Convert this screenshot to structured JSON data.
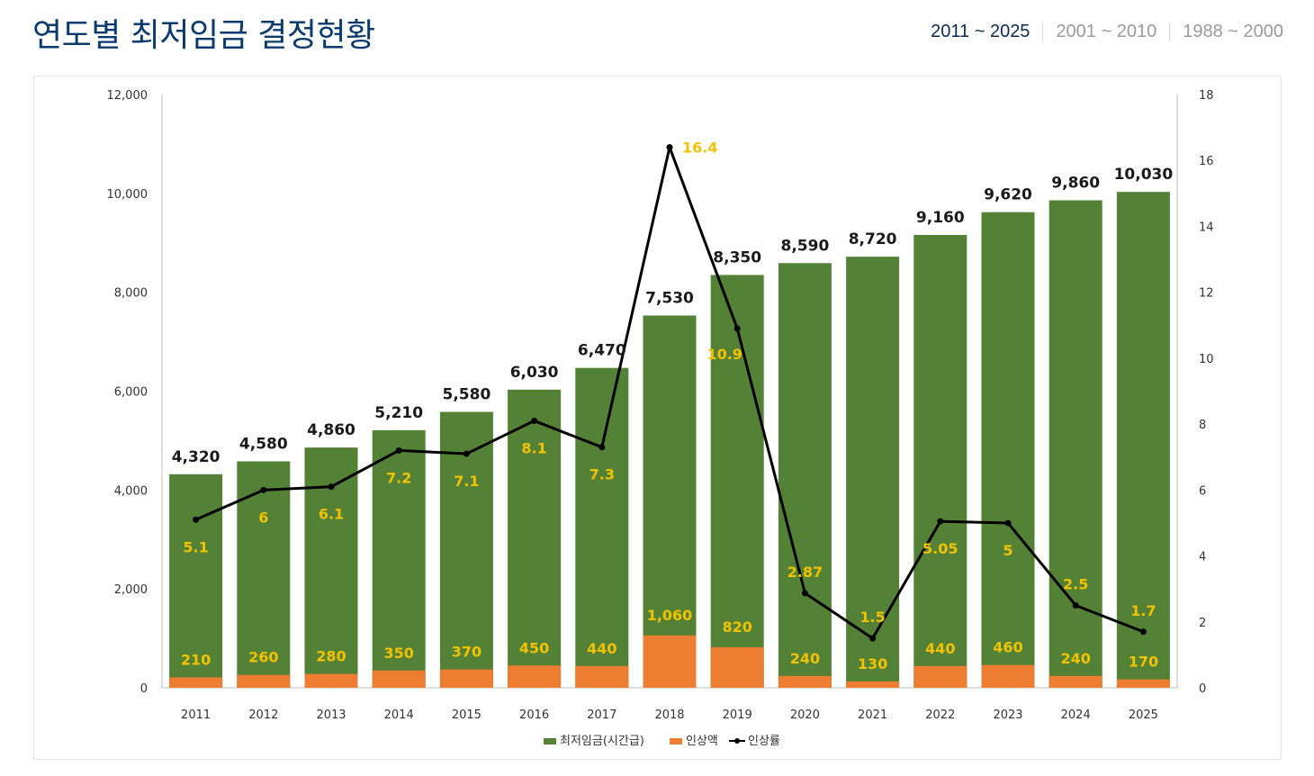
{
  "page": {
    "title": "연도별 최저임금 결정현황",
    "tabs": [
      {
        "label": "2011 ~ 2025",
        "active": true
      },
      {
        "label": "2001 ~ 2010",
        "active": false
      },
      {
        "label": "1988 ~ 2000",
        "active": false
      }
    ]
  },
  "colors": {
    "wage_bar": "#538135",
    "increase_bar": "#ed7d31",
    "rate_line": "#000000",
    "data_label": "#f2c200",
    "title": "#0b3a6e"
  },
  "chart_data": {
    "type": "bar",
    "title": "",
    "categories": [
      "2011",
      "2012",
      "2013",
      "2014",
      "2015",
      "2016",
      "2017",
      "2018",
      "2019",
      "2020",
      "2021",
      "2022",
      "2023",
      "2024",
      "2025"
    ],
    "series": [
      {
        "name": "최저임금(시간급)",
        "type": "bar",
        "axis": "left",
        "values": [
          4320,
          4580,
          4860,
          5210,
          5580,
          6030,
          6470,
          7530,
          8350,
          8590,
          8720,
          9160,
          9620,
          9860,
          10030
        ],
        "labels": [
          "4,320",
          "4,580",
          "4,860",
          "5,210",
          "5,580",
          "6,030",
          "6,470",
          "7,530",
          "8,350",
          "8,590",
          "8,720",
          "9,160",
          "9,620",
          "9,860",
          "10,030"
        ]
      },
      {
        "name": "인상액",
        "type": "bar",
        "axis": "left",
        "values": [
          210,
          260,
          280,
          350,
          370,
          450,
          440,
          1060,
          820,
          240,
          130,
          440,
          460,
          240,
          170
        ],
        "labels": [
          "210",
          "260",
          "280",
          "350",
          "370",
          "450",
          "440",
          "1,060",
          "820",
          "240",
          "130",
          "440",
          "460",
          "240",
          "170"
        ]
      },
      {
        "name": "인상률",
        "type": "line",
        "axis": "right",
        "values": [
          5.1,
          6,
          6.1,
          7.2,
          7.1,
          8.1,
          7.3,
          16.4,
          10.9,
          2.87,
          1.5,
          5.05,
          5,
          2.5,
          1.7
        ],
        "labels": [
          "5.1",
          "6",
          "6.1",
          "7.2",
          "7.1",
          "8.1",
          "7.3",
          "16.4",
          "10.9",
          "2.87",
          "1.5",
          "5.05",
          "5",
          "2.5",
          "1.7"
        ]
      }
    ],
    "y_left": {
      "min": 0,
      "max": 12000,
      "ticks": [
        0,
        2000,
        4000,
        6000,
        8000,
        10000,
        12000
      ],
      "tick_labels": [
        "0",
        "2,000",
        "4,000",
        "6,000",
        "8,000",
        "10,000",
        "12,000"
      ]
    },
    "y_right": {
      "min": 0,
      "max": 18,
      "ticks": [
        0,
        2,
        4,
        6,
        8,
        10,
        12,
        14,
        16,
        18
      ],
      "tick_labels": [
        "0",
        "2",
        "4",
        "6",
        "8",
        "10",
        "12",
        "14",
        "16",
        "18"
      ]
    },
    "legend": {
      "position": "bottom",
      "items": [
        "최저임금(시간급)",
        "인상액",
        "인상률"
      ]
    },
    "grid": false
  }
}
